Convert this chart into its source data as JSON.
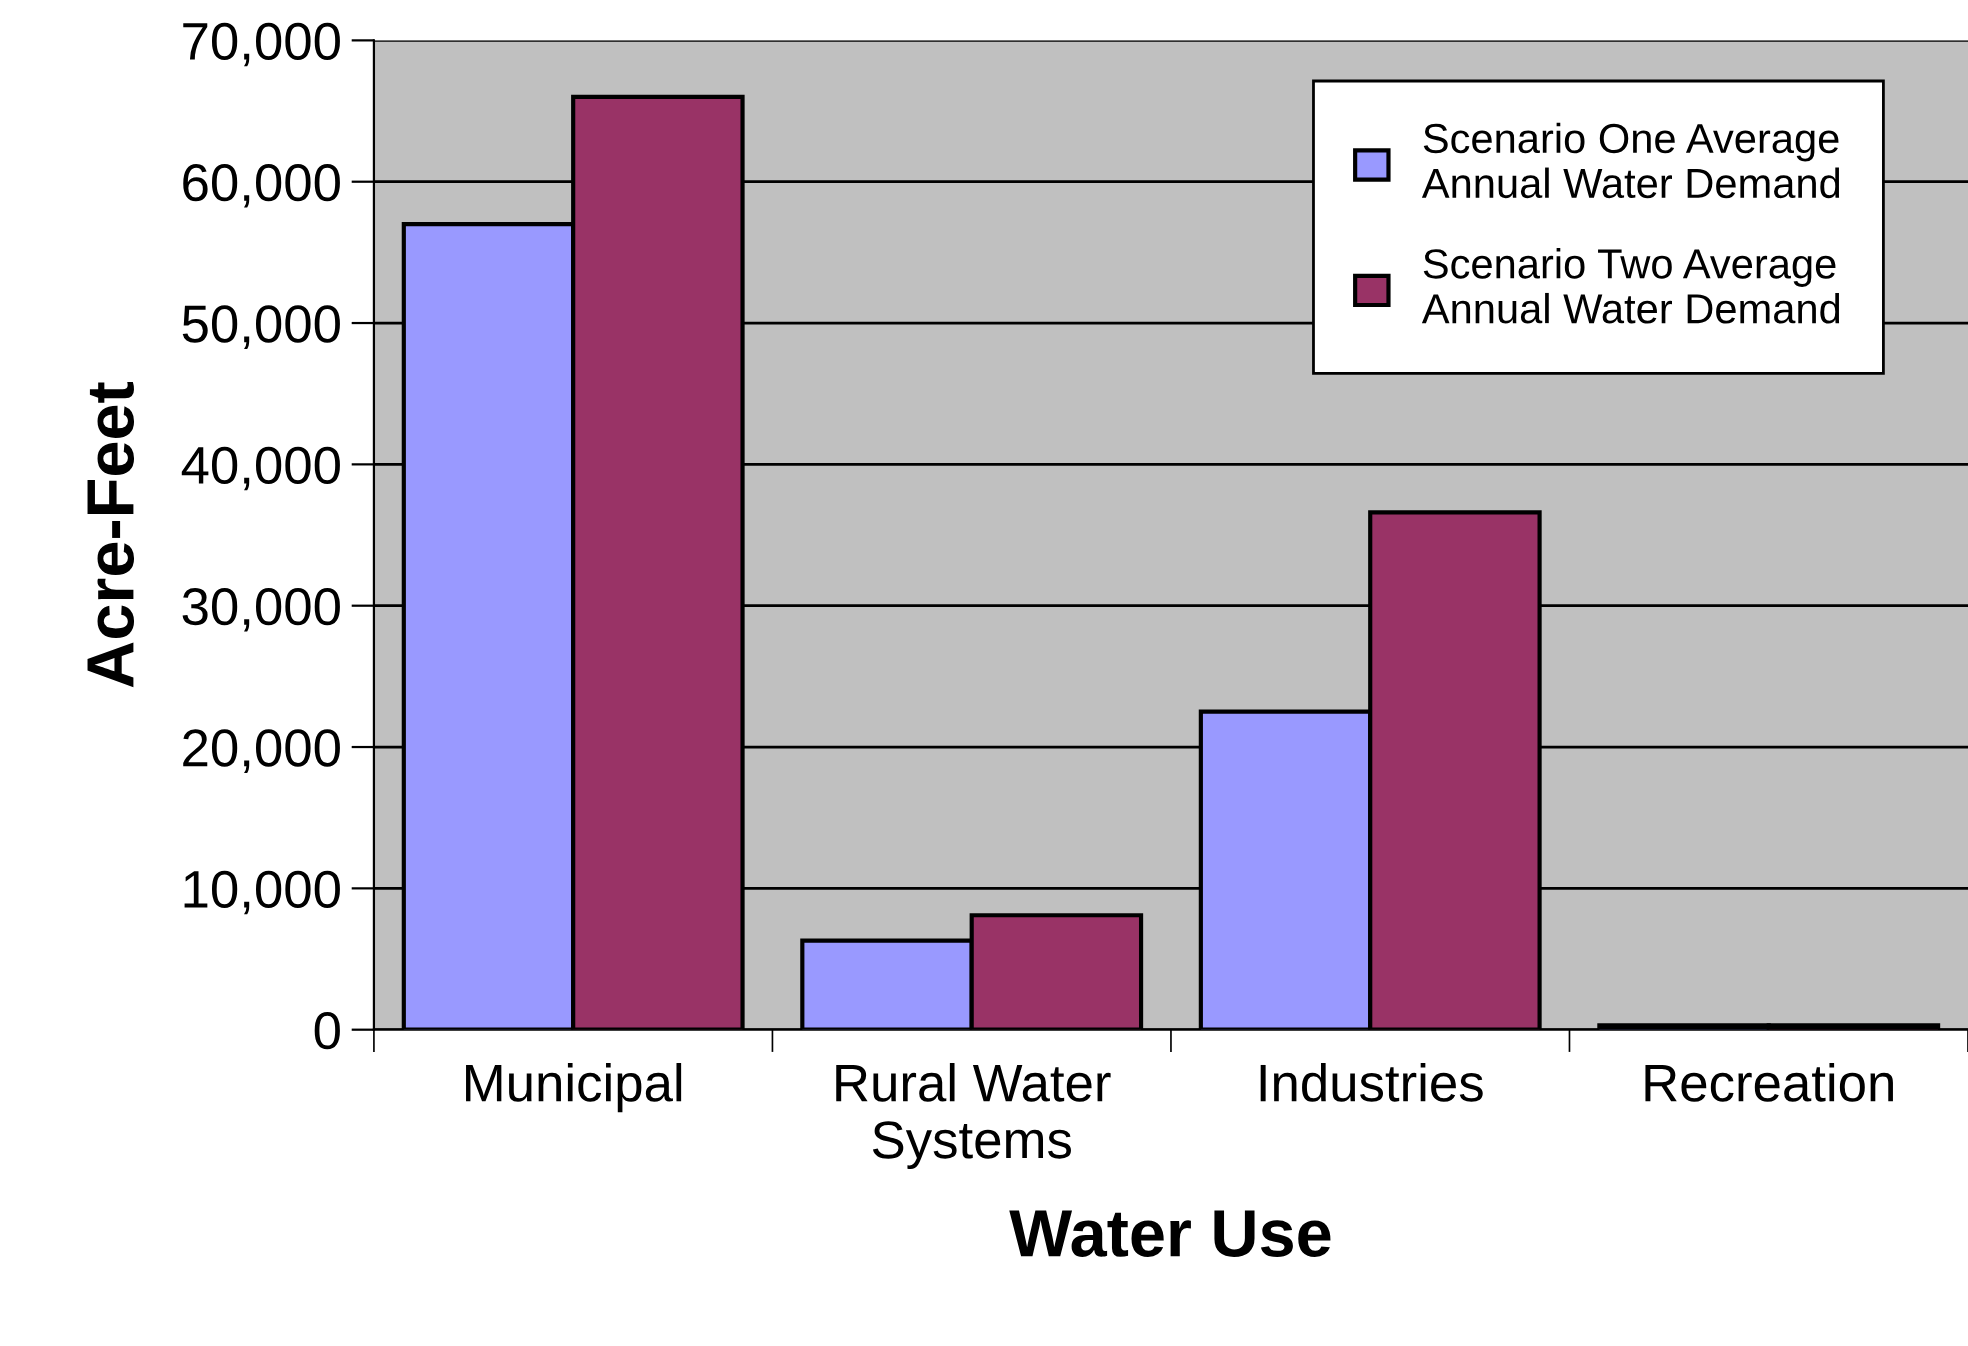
{
  "chart_data": {
    "type": "bar",
    "xlabel": "Water Use",
    "ylabel": "Acre-Feet",
    "categories": [
      "Municipal",
      "Rural Water\nSystems",
      "Industries",
      "Recreation"
    ],
    "series": [
      {
        "name": "Scenario One Average\nAnnual Water Demand",
        "color": "#9999ff",
        "values": [
          57000,
          6300,
          22500,
          300
        ]
      },
      {
        "name": "Scenario Two Average\nAnnual Water Demand",
        "color": "#993366",
        "values": [
          66000,
          8100,
          36600,
          300
        ]
      }
    ],
    "ylim": [
      0,
      70000
    ],
    "yticks": [
      {
        "value": 0,
        "label": "0"
      },
      {
        "value": 10000,
        "label": "10,000"
      },
      {
        "value": 20000,
        "label": "20,000"
      },
      {
        "value": 30000,
        "label": "30,000"
      },
      {
        "value": 40000,
        "label": "40,000"
      },
      {
        "value": 50000,
        "label": "50,000"
      },
      {
        "value": 60000,
        "label": "60,000"
      },
      {
        "value": 70000,
        "label": "70,000"
      }
    ],
    "grid": "y",
    "legend": "top right"
  }
}
